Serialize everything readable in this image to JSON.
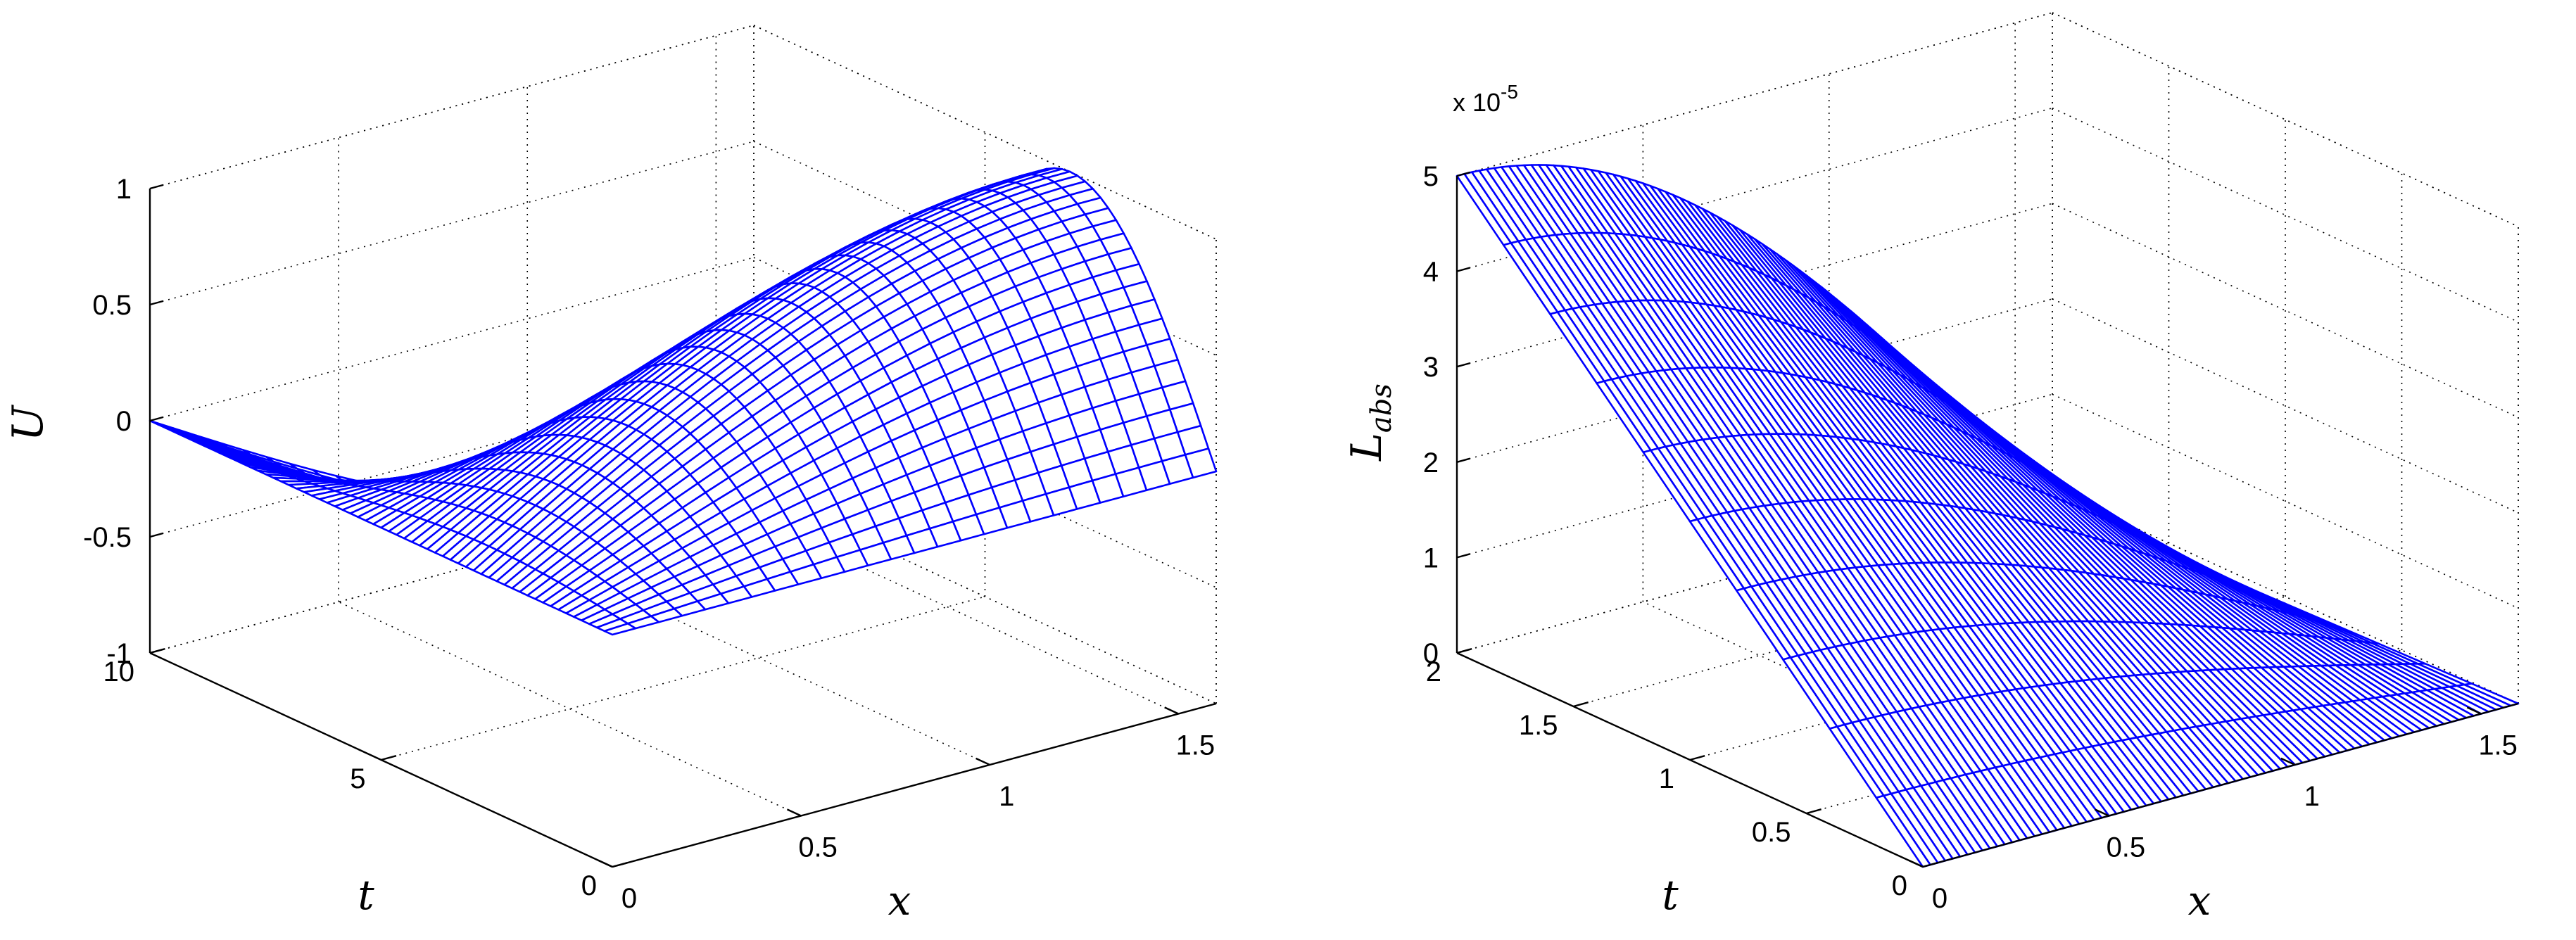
{
  "chart_data": [
    {
      "type": "surface",
      "zlabel": "U",
      "xlabel": "x",
      "ylabel": "t",
      "x_ticks": [
        "0",
        "0.5",
        "1",
        "1.5"
      ],
      "t_ticks": [
        "0",
        "5",
        "10"
      ],
      "z_ticks": [
        "-1",
        "-0.5",
        "0",
        "0.5",
        "1"
      ],
      "xlim": [
        0,
        1.6
      ],
      "tlim": [
        0,
        10
      ],
      "zlim": [
        -1,
        1
      ],
      "grid": true,
      "mesh_color": "#0000ff",
      "function": "U(x,t) = sin(x) * sin(t/2)",
      "x_range": [
        0,
        1.6
      ],
      "t_range": [
        0,
        10
      ],
      "mesh_x_lines": 26,
      "mesh_t_lines": 60
    },
    {
      "type": "surface",
      "zlabel": "L",
      "zlabel_sub": "abs",
      "xlabel": "x",
      "ylabel": "t",
      "exponent_label": "x 10",
      "exponent": "-5",
      "x_ticks": [
        "0",
        "0.5",
        "1",
        "1.5"
      ],
      "t_ticks": [
        "0",
        "0.5",
        "1",
        "1.5",
        "2"
      ],
      "z_ticks": [
        "0",
        "1",
        "2",
        "3",
        "4",
        "5"
      ],
      "xlim": [
        0,
        1.6
      ],
      "tlim": [
        0,
        2
      ],
      "zlim": [
        0,
        5
      ],
      "grid": true,
      "mesh_color": "#0000ff",
      "function": "L(x,t) = 5e-5 * cos(x) * t/2",
      "x_range": [
        0,
        1.6
      ],
      "t_range": [
        0,
        2
      ],
      "mesh_x_lines": 80,
      "mesh_t_lines": 10
    }
  ]
}
